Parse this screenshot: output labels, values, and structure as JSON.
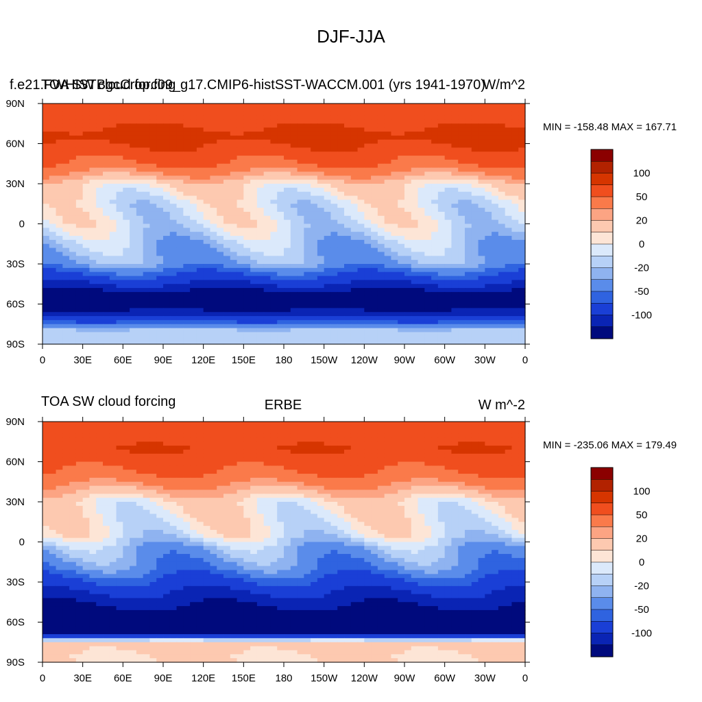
{
  "figure": {
    "title": "DJF-JJA"
  },
  "chart_data": [
    {
      "type": "heatmap",
      "left_title": "f.e21.FWHISTBgcCrop.f09_g17.CMIP6-histSST-WACCM.001 (yrs 1941-1970)",
      "center_title": "TOA SW cloud forcing",
      "right_title": "W/m^2",
      "minmax_text": "MIN = -158.48  MAX = 167.71",
      "xticks": [
        "0",
        "30E",
        "60E",
        "90E",
        "120E",
        "150E",
        "180",
        "150W",
        "120W",
        "90W",
        "60W",
        "30W",
        "0"
      ],
      "yticks": [
        "90N",
        "60N",
        "30N",
        "0",
        "30S",
        "60S",
        "90S"
      ],
      "xlim": [
        0,
        360
      ],
      "ylim": [
        -90,
        90
      ],
      "colorbar_levels": [
        "100",
        "50",
        "20",
        "0",
        "-20",
        "-50",
        "-100"
      ],
      "colorbar_colors": [
        "#8b0000",
        "#b22200",
        "#d63500",
        "#f04e1e",
        "#fa7a4a",
        "#fca483",
        "#fdc9b0",
        "#fde5d6",
        "#dbe9fb",
        "#b7d1f7",
        "#8fb3f0",
        "#5a8cea",
        "#2f63e0",
        "#1a3fd6",
        "#0a24b4",
        "#000a7d"
      ],
      "notes": {
        "band_values": [
          {
            "lat": 80,
            "value": 90
          },
          {
            "lat": 65,
            "value": 110
          },
          {
            "lat": 45,
            "value": 75
          },
          {
            "lat": 30,
            "value": 20
          },
          {
            "lat": 15,
            "value": 5
          },
          {
            "lat": 0,
            "value": 5
          },
          {
            "lat": -15,
            "value": -10
          },
          {
            "lat": -30,
            "value": -20
          },
          {
            "lat": -45,
            "value": -75
          },
          {
            "lat": -55,
            "value": -125
          },
          {
            "lat": -65,
            "value": -100
          },
          {
            "lat": -80,
            "value": -5
          }
        ]
      }
    },
    {
      "type": "heatmap",
      "left_title": "TOA SW cloud forcing",
      "center_title": "ERBE",
      "right_title": "W m^-2",
      "minmax_text": "MIN = -235.06  MAX = 179.49",
      "xticks": [
        "0",
        "30E",
        "60E",
        "90E",
        "120E",
        "150E",
        "180",
        "150W",
        "120W",
        "90W",
        "60W",
        "30W",
        "0"
      ],
      "yticks": [
        "90N",
        "60N",
        "30N",
        "0",
        "30S",
        "60S",
        "90S"
      ],
      "xlim": [
        0,
        360
      ],
      "ylim": [
        -90,
        90
      ],
      "colorbar_levels": [
        "100",
        "50",
        "20",
        "0",
        "-20",
        "-50",
        "-100"
      ],
      "colorbar_colors": [
        "#8b0000",
        "#b22200",
        "#d63500",
        "#f04e1e",
        "#fa7a4a",
        "#fca483",
        "#fdc9b0",
        "#fde5d6",
        "#dbe9fb",
        "#b7d1f7",
        "#8fb3f0",
        "#5a8cea",
        "#2f63e0",
        "#1a3fd6",
        "#0a24b4",
        "#000a7d"
      ],
      "notes": {
        "band_values": [
          {
            "lat": 85,
            "value": 80
          },
          {
            "lat": 70,
            "value": 100
          },
          {
            "lat": 50,
            "value": 70
          },
          {
            "lat": 30,
            "value": 15
          },
          {
            "lat": 15,
            "value": 10
          },
          {
            "lat": 5,
            "value": 5
          },
          {
            "lat": -5,
            "value": -15
          },
          {
            "lat": -20,
            "value": -30
          },
          {
            "lat": -40,
            "value": -80
          },
          {
            "lat": -55,
            "value": -120
          },
          {
            "lat": -65,
            "value": -160
          },
          {
            "lat": -75,
            "value": 25
          },
          {
            "lat": -85,
            "value": 20
          }
        ]
      }
    }
  ]
}
